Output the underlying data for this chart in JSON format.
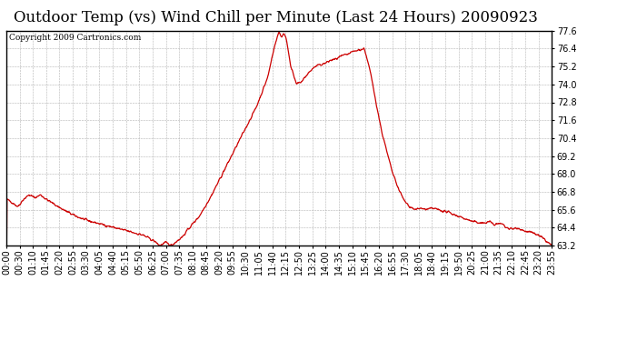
{
  "title": "Outdoor Temp (vs) Wind Chill per Minute (Last 24 Hours) 20090923",
  "copyright": "Copyright 2009 Cartronics.com",
  "line_color": "#cc0000",
  "background_color": "#ffffff",
  "grid_color": "#aaaaaa",
  "ylim": [
    63.2,
    77.6
  ],
  "yticks": [
    63.2,
    64.4,
    65.6,
    66.8,
    68.0,
    69.2,
    70.4,
    71.6,
    72.8,
    74.0,
    75.2,
    76.4,
    77.6
  ],
  "xtick_labels": [
    "00:00",
    "00:30",
    "01:10",
    "01:45",
    "02:20",
    "02:55",
    "03:30",
    "04:05",
    "04:40",
    "05:15",
    "05:50",
    "06:25",
    "07:00",
    "07:35",
    "08:10",
    "08:45",
    "09:20",
    "09:55",
    "10:30",
    "11:05",
    "11:40",
    "12:15",
    "12:50",
    "13:25",
    "14:00",
    "14:35",
    "15:10",
    "15:45",
    "16:20",
    "16:55",
    "17:30",
    "18:05",
    "18:40",
    "19:15",
    "19:50",
    "20:25",
    "21:00",
    "21:35",
    "22:10",
    "22:45",
    "23:20",
    "23:55"
  ],
  "title_fontsize": 12,
  "copyright_fontsize": 6.5,
  "tick_fontsize": 7,
  "figsize": [
    6.9,
    3.75
  ],
  "dpi": 100
}
